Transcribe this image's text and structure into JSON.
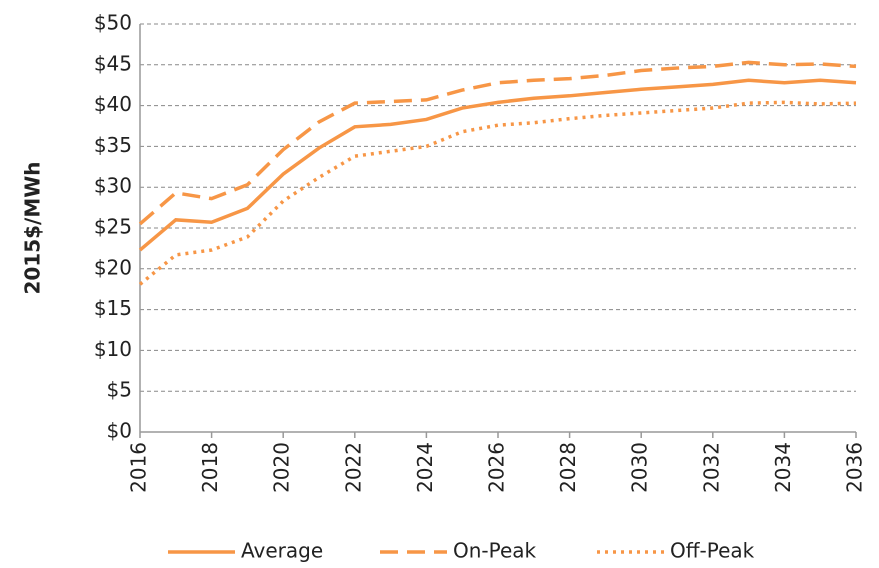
{
  "chart_data": {
    "type": "line",
    "y_label": "2015$/MWh",
    "x": [
      2016,
      2017,
      2018,
      2019,
      2020,
      2021,
      2022,
      2023,
      2024,
      2025,
      2026,
      2027,
      2028,
      2029,
      2030,
      2031,
      2032,
      2033,
      2034,
      2035,
      2036
    ],
    "series": [
      {
        "name": "Average",
        "color": "#f79646",
        "linestyle": "solid",
        "values": [
          22.3,
          26.0,
          25.7,
          27.4,
          31.6,
          34.8,
          37.4,
          37.7,
          38.3,
          39.7,
          40.4,
          40.9,
          41.2,
          41.6,
          42.0,
          42.3,
          42.6,
          43.1,
          42.8,
          43.1,
          42.8
        ]
      },
      {
        "name": "On-Peak",
        "color": "#f79646",
        "linestyle": "dashed",
        "values": [
          25.5,
          29.3,
          28.6,
          30.3,
          34.6,
          38.0,
          40.3,
          40.5,
          40.7,
          41.9,
          42.8,
          43.1,
          43.3,
          43.7,
          44.3,
          44.6,
          44.8,
          45.3,
          45.0,
          45.1,
          44.8
        ]
      },
      {
        "name": "Off-Peak",
        "color": "#f79646",
        "linestyle": "dotted",
        "values": [
          18.1,
          21.7,
          22.3,
          23.9,
          28.3,
          31.2,
          33.8,
          34.4,
          35.0,
          36.8,
          37.6,
          37.9,
          38.4,
          38.8,
          39.1,
          39.4,
          39.7,
          40.3,
          40.4,
          40.2,
          40.3
        ]
      }
    ],
    "xlim": [
      2016,
      2036
    ],
    "xticks": [
      2016,
      2018,
      2020,
      2022,
      2024,
      2026,
      2028,
      2030,
      2032,
      2034,
      2036
    ],
    "ylim": [
      0,
      50
    ],
    "yticks": [
      {
        "value": 0,
        "label": "$0"
      },
      {
        "value": 5,
        "label": "$5"
      },
      {
        "value": 10,
        "label": "$10"
      },
      {
        "value": 15,
        "label": "$15"
      },
      {
        "value": 20,
        "label": "$20"
      },
      {
        "value": 25,
        "label": "$25"
      },
      {
        "value": 30,
        "label": "$30"
      },
      {
        "value": 35,
        "label": "$35"
      },
      {
        "value": 40,
        "label": "$40"
      },
      {
        "value": 45,
        "label": "$45"
      },
      {
        "value": 50,
        "label": "$50"
      }
    ],
    "grid": true,
    "legend": "bottom"
  }
}
